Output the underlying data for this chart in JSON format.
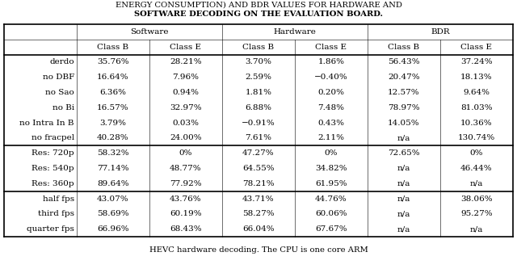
{
  "title_line1": "ENERGY CONSUMPTION) AND BDR VALUES FOR HARDWARE AND",
  "title_line2": "SOFTWARE DECODING ON THE EVALUATION BOARD.",
  "col_groups": [
    "Software",
    "Hardware",
    "BDR"
  ],
  "col_subheaders": [
    "Class B",
    "Class E",
    "Class B",
    "Class E",
    "Class B",
    "Class E"
  ],
  "row_groups": [
    {
      "rows": [
        [
          "derdo",
          "35.76%",
          "28.21%",
          "3.70%",
          "1.86%",
          "56.43%",
          "37.24%"
        ],
        [
          "no DBF",
          "16.64%",
          "7.96%",
          "2.59%",
          "−0.40%",
          "20.47%",
          "18.13%"
        ],
        [
          "no Sao",
          "6.36%",
          "0.94%",
          "1.81%",
          "0.20%",
          "12.57%",
          "9.64%"
        ],
        [
          "no Bi",
          "16.57%",
          "32.97%",
          "6.88%",
          "7.48%",
          "78.97%",
          "81.03%"
        ],
        [
          "no Intra In B",
          "3.79%",
          "0.03%",
          "−0.91%",
          "0.43%",
          "14.05%",
          "10.36%"
        ],
        [
          "no fracpel",
          "40.28%",
          "24.00%",
          "7.61%",
          "2.11%",
          "n/a",
          "130.74%"
        ]
      ]
    },
    {
      "rows": [
        [
          "Res: 720p",
          "58.32%",
          "0%",
          "47.27%",
          "0%",
          "72.65%",
          "0%"
        ],
        [
          "Res: 540p",
          "77.14%",
          "48.77%",
          "64.55%",
          "34.82%",
          "n/a",
          "46.44%"
        ],
        [
          "Res: 360p",
          "89.64%",
          "77.92%",
          "78.21%",
          "61.95%",
          "n/a",
          "n/a"
        ]
      ]
    },
    {
      "rows": [
        [
          "half fps",
          "43.07%",
          "43.76%",
          "43.71%",
          "44.76%",
          "n/a",
          "38.06%"
        ],
        [
          "third fps",
          "58.69%",
          "60.19%",
          "58.27%",
          "60.06%",
          "n/a",
          "95.27%"
        ],
        [
          "quarter fps",
          "66.96%",
          "68.43%",
          "66.04%",
          "67.67%",
          "n/a",
          "n/a"
        ]
      ]
    }
  ],
  "footer_text": "HEVC hardware decoding. The CPU is one core ARM",
  "background_color": "#ffffff",
  "font_size": 7.5,
  "title_font_size": 7.2,
  "lw_thick": 1.2,
  "lw_thin": 0.4
}
